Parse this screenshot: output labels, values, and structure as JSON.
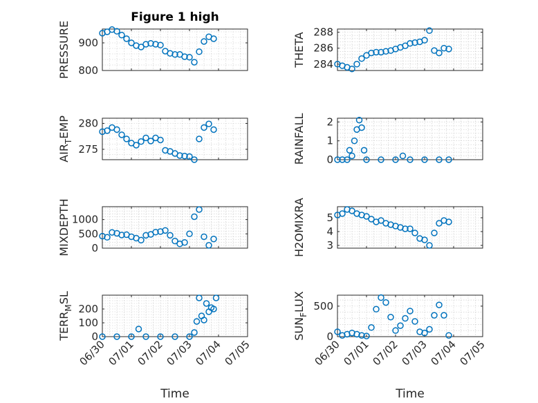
{
  "figure_title": "Figure 1 high",
  "x_ticks": [
    "06/30",
    "07/01",
    "07/02",
    "07/03",
    "07/04",
    "07/05"
  ],
  "x_tick_domain": [
    "2019-06-30",
    "2019-07-05"
  ],
  "chart_data": [
    {
      "type": "scatter",
      "title": "Figure 1 high",
      "xlabel": "",
      "ylabel": "PRESSURE",
      "ylim": [
        800,
        950
      ],
      "yticks": [
        800,
        900
      ],
      "grid": true,
      "series": [
        {
          "x": [
            "2019-06-30 00:00",
            "2019-06-30 04:00",
            "2019-06-30 08:00",
            "2019-06-30 12:00",
            "2019-06-30 16:00",
            "2019-06-30 20:00",
            "2019-07-01 00:00",
            "2019-07-01 04:00",
            "2019-07-01 08:00",
            "2019-07-01 12:00",
            "2019-07-01 16:00",
            "2019-07-01 20:00",
            "2019-07-02 00:00",
            "2019-07-02 04:00",
            "2019-07-02 08:00",
            "2019-07-02 12:00",
            "2019-07-02 16:00",
            "2019-07-02 20:00",
            "2019-07-03 00:00",
            "2019-07-03 04:00",
            "2019-07-03 08:00",
            "2019-07-03 12:00",
            "2019-07-03 16:00",
            "2019-07-03 20:00"
          ],
          "y": [
            935,
            940,
            948,
            942,
            928,
            915,
            900,
            890,
            885,
            895,
            898,
            895,
            892,
            870,
            862,
            858,
            858,
            850,
            848,
            830,
            868,
            905,
            922,
            915
          ]
        }
      ]
    },
    {
      "type": "scatter",
      "title": "",
      "xlabel": "",
      "ylabel": "THETA",
      "ylim": [
        283.2,
        288.4
      ],
      "yticks": [
        284,
        286,
        288
      ],
      "grid": true,
      "series": [
        {
          "x": [
            "2019-06-30 00:00",
            "2019-06-30 04:00",
            "2019-06-30 08:00",
            "2019-06-30 12:00",
            "2019-06-30 16:00",
            "2019-06-30 20:00",
            "2019-07-01 00:00",
            "2019-07-01 04:00",
            "2019-07-01 08:00",
            "2019-07-01 12:00",
            "2019-07-01 16:00",
            "2019-07-01 20:00",
            "2019-07-02 00:00",
            "2019-07-02 04:00",
            "2019-07-02 08:00",
            "2019-07-02 12:00",
            "2019-07-02 16:00",
            "2019-07-02 20:00",
            "2019-07-03 00:00",
            "2019-07-03 04:00",
            "2019-07-03 08:00",
            "2019-07-03 12:00",
            "2019-07-03 16:00",
            "2019-07-03 20:00"
          ],
          "y": [
            284.0,
            283.8,
            283.6,
            283.4,
            284.0,
            284.7,
            285.1,
            285.4,
            285.5,
            285.5,
            285.6,
            285.7,
            285.9,
            286.1,
            286.3,
            286.6,
            286.7,
            286.8,
            287.0,
            288.2,
            285.7,
            285.4,
            286.0,
            285.9
          ]
        }
      ]
    },
    {
      "type": "scatter",
      "title": "",
      "xlabel": "",
      "ylabel": "AIR_TEMP",
      "ylim": [
        273,
        281
      ],
      "yticks": [
        275,
        280
      ],
      "grid": true,
      "series": [
        {
          "x": [
            "2019-06-30 00:00",
            "2019-06-30 04:00",
            "2019-06-30 08:00",
            "2019-06-30 12:00",
            "2019-06-30 16:00",
            "2019-06-30 20:00",
            "2019-07-01 00:00",
            "2019-07-01 04:00",
            "2019-07-01 08:00",
            "2019-07-01 12:00",
            "2019-07-01 16:00",
            "2019-07-01 20:00",
            "2019-07-02 00:00",
            "2019-07-02 04:00",
            "2019-07-02 08:00",
            "2019-07-02 12:00",
            "2019-07-02 16:00",
            "2019-07-02 20:00",
            "2019-07-03 00:00",
            "2019-07-03 04:00",
            "2019-07-03 08:00",
            "2019-07-03 12:00",
            "2019-07-03 16:00",
            "2019-07-03 20:00"
          ],
          "y": [
            278.4,
            278.6,
            279.2,
            278.8,
            277.8,
            277.0,
            276.2,
            275.8,
            276.5,
            277.2,
            276.6,
            277.2,
            276.8,
            274.8,
            274.6,
            274.2,
            273.8,
            273.7,
            273.6,
            273.0,
            277.0,
            279.2,
            279.9,
            278.8
          ]
        }
      ]
    },
    {
      "type": "scatter",
      "title": "",
      "xlabel": "",
      "ylabel": "RAINFALL",
      "ylim": [
        0,
        2.2
      ],
      "yticks": [
        0,
        1,
        2
      ],
      "grid": true,
      "series": [
        {
          "x": [
            "2019-06-30 00:00",
            "2019-06-30 04:00",
            "2019-06-30 08:00",
            "2019-06-30 10:00",
            "2019-06-30 12:00",
            "2019-06-30 14:00",
            "2019-06-30 16:00",
            "2019-06-30 18:00",
            "2019-06-30 20:00",
            "2019-06-30 22:00",
            "2019-07-01 00:00",
            "2019-07-01 12:00",
            "2019-07-02 00:00",
            "2019-07-02 06:00",
            "2019-07-02 12:00",
            "2019-07-03 00:00",
            "2019-07-03 12:00",
            "2019-07-03 20:00"
          ],
          "y": [
            0,
            0,
            0,
            0.5,
            0.2,
            1.0,
            1.6,
            2.1,
            1.7,
            0.5,
            0,
            0,
            0,
            0.2,
            0,
            0,
            0,
            0
          ]
        }
      ]
    },
    {
      "type": "scatter",
      "title": "",
      "xlabel": "",
      "ylabel": "MIXDEPTH",
      "ylim": [
        0,
        1450
      ],
      "yticks": [
        0,
        500,
        1000
      ],
      "grid": true,
      "series": [
        {
          "x": [
            "2019-06-30 00:00",
            "2019-06-30 04:00",
            "2019-06-30 08:00",
            "2019-06-30 12:00",
            "2019-06-30 16:00",
            "2019-06-30 20:00",
            "2019-07-01 00:00",
            "2019-07-01 04:00",
            "2019-07-01 08:00",
            "2019-07-01 12:00",
            "2019-07-01 16:00",
            "2019-07-01 20:00",
            "2019-07-02 00:00",
            "2019-07-02 04:00",
            "2019-07-02 08:00",
            "2019-07-02 12:00",
            "2019-07-02 16:00",
            "2019-07-02 20:00",
            "2019-07-03 00:00",
            "2019-07-03 04:00",
            "2019-07-03 08:00",
            "2019-07-03 12:00",
            "2019-07-03 16:00",
            "2019-07-03 20:00"
          ],
          "y": [
            420,
            380,
            550,
            520,
            460,
            470,
            400,
            350,
            280,
            450,
            480,
            560,
            580,
            620,
            450,
            250,
            150,
            200,
            500,
            1100,
            1350,
            400,
            100,
            320
          ]
        }
      ]
    },
    {
      "type": "scatter",
      "title": "",
      "xlabel": "",
      "ylabel": "H2OMIXRA",
      "ylim": [
        2.8,
        5.8
      ],
      "yticks": [
        3,
        4,
        5
      ],
      "grid": true,
      "series": [
        {
          "x": [
            "2019-06-30 00:00",
            "2019-06-30 04:00",
            "2019-06-30 08:00",
            "2019-06-30 12:00",
            "2019-06-30 16:00",
            "2019-06-30 20:00",
            "2019-07-01 00:00",
            "2019-07-01 04:00",
            "2019-07-01 08:00",
            "2019-07-01 12:00",
            "2019-07-01 16:00",
            "2019-07-01 20:00",
            "2019-07-02 00:00",
            "2019-07-02 04:00",
            "2019-07-02 08:00",
            "2019-07-02 12:00",
            "2019-07-02 16:00",
            "2019-07-02 20:00",
            "2019-07-03 00:00",
            "2019-07-03 04:00",
            "2019-07-03 08:00",
            "2019-07-03 12:00",
            "2019-07-03 16:00",
            "2019-07-03 20:00"
          ],
          "y": [
            5.2,
            5.3,
            5.6,
            5.5,
            5.3,
            5.2,
            5.1,
            4.9,
            4.7,
            4.8,
            4.6,
            4.5,
            4.4,
            4.3,
            4.2,
            4.2,
            3.9,
            3.5,
            3.4,
            3.0,
            3.9,
            4.6,
            4.8,
            4.7
          ]
        }
      ]
    },
    {
      "type": "scatter",
      "title": "",
      "xlabel": "Time",
      "ylabel": "TERR_MSL",
      "ylim": [
        0,
        300
      ],
      "yticks": [
        0,
        100,
        200
      ],
      "grid": true,
      "series": [
        {
          "x": [
            "2019-06-30 00:00",
            "2019-06-30 12:00",
            "2019-07-01 00:00",
            "2019-07-01 06:00",
            "2019-07-01 12:00",
            "2019-07-02 00:00",
            "2019-07-02 12:00",
            "2019-07-03 00:00",
            "2019-07-03 04:00",
            "2019-07-03 06:00",
            "2019-07-03 08:00",
            "2019-07-03 10:00",
            "2019-07-03 12:00",
            "2019-07-03 14:00",
            "2019-07-03 16:00",
            "2019-07-03 18:00",
            "2019-07-03 20:00",
            "2019-07-03 22:00"
          ],
          "y": [
            0,
            0,
            0,
            55,
            0,
            0,
            0,
            0,
            30,
            110,
            280,
            150,
            120,
            240,
            180,
            210,
            200,
            280
          ]
        }
      ]
    },
    {
      "type": "scatter",
      "title": "",
      "xlabel": "Time",
      "ylabel": "SUN_FLUX",
      "ylim": [
        0,
        680
      ],
      "yticks": [
        0,
        500
      ],
      "grid": true,
      "series": [
        {
          "x": [
            "2019-06-30 00:00",
            "2019-06-30 04:00",
            "2019-06-30 08:00",
            "2019-06-30 12:00",
            "2019-06-30 16:00",
            "2019-06-30 20:00",
            "2019-07-01 00:00",
            "2019-07-01 04:00",
            "2019-07-01 08:00",
            "2019-07-01 12:00",
            "2019-07-01 16:00",
            "2019-07-01 20:00",
            "2019-07-02 00:00",
            "2019-07-02 04:00",
            "2019-07-02 08:00",
            "2019-07-02 12:00",
            "2019-07-02 16:00",
            "2019-07-02 20:00",
            "2019-07-03 00:00",
            "2019-07-03 04:00",
            "2019-07-03 08:00",
            "2019-07-03 12:00",
            "2019-07-03 16:00",
            "2019-07-03 20:00"
          ],
          "y": [
            80,
            20,
            40,
            60,
            40,
            20,
            10,
            150,
            450,
            640,
            560,
            320,
            100,
            180,
            300,
            420,
            250,
            80,
            60,
            120,
            350,
            520,
            350,
            20
          ]
        }
      ]
    }
  ]
}
